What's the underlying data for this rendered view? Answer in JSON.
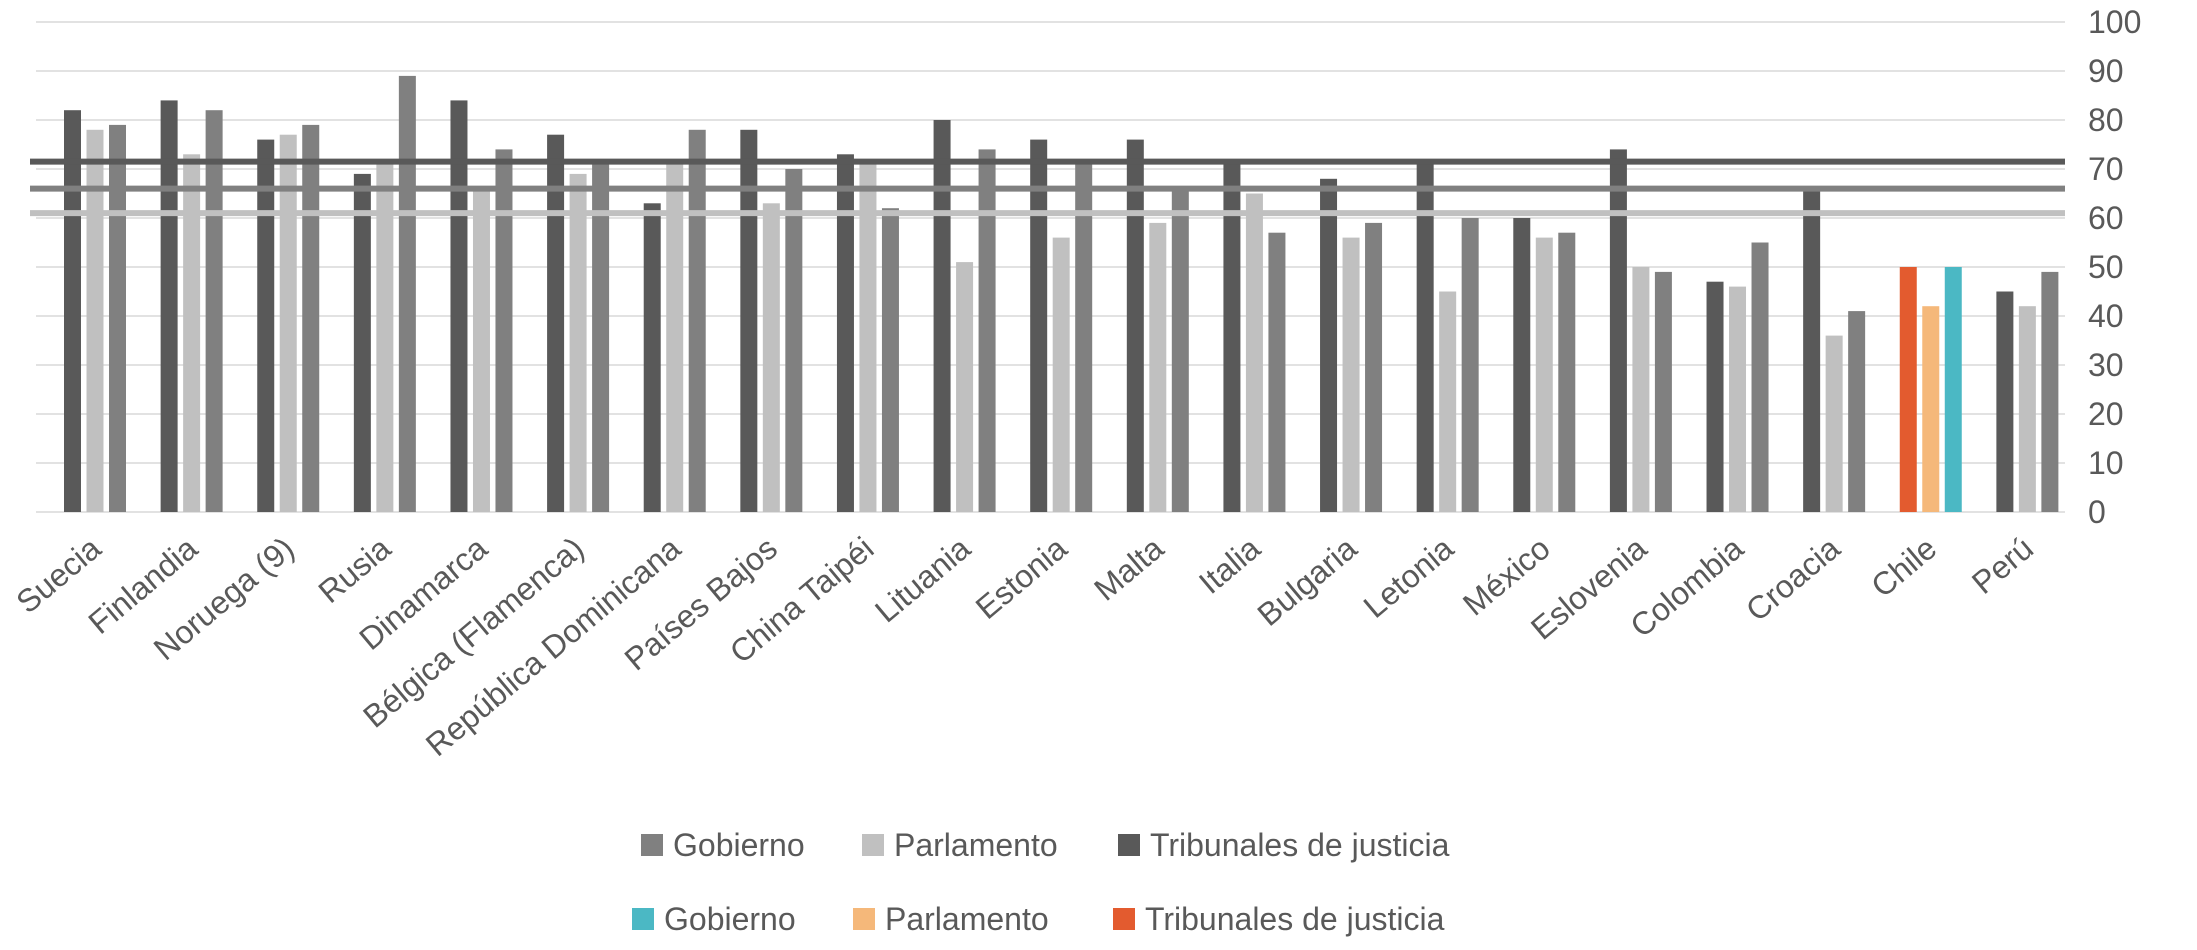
{
  "chart_data": {
    "type": "bar",
    "title": "",
    "xlabel": "",
    "ylabel": "",
    "ylim": [
      0,
      100
    ],
    "yticks": [
      0,
      10,
      20,
      30,
      40,
      50,
      60,
      70,
      80,
      90,
      100
    ],
    "y_axis_position": "right",
    "grid": true,
    "legend_position": "bottom",
    "categories": [
      "Suecia",
      "Finlandia",
      "Noruega (9)",
      "Rusia",
      "Dinamarca",
      "Bélgica (Flamenca)",
      "República Dominicana",
      "Países Bajos",
      "China Taipéi",
      "Lituania",
      "Estonia",
      "Malta",
      "Italia",
      "Bulgaria",
      "Letonia",
      "México",
      "Eslovenia",
      "Colombia",
      "Croacia",
      "Chile",
      "Perú"
    ],
    "series": [
      {
        "name": "Tribunales de justicia",
        "color": "#595959",
        "highlight_color": "#e35b2f",
        "values": [
          82,
          84,
          76,
          69,
          84,
          77,
          63,
          78,
          73,
          80,
          76,
          76,
          72,
          68,
          71,
          60,
          74,
          47,
          66,
          50,
          45
        ]
      },
      {
        "name": "Parlamento",
        "color": "#c0c0c0",
        "highlight_color": "#f5b87a",
        "values": [
          78,
          73,
          77,
          72,
          66,
          69,
          72,
          63,
          71,
          51,
          56,
          59,
          65,
          56,
          45,
          56,
          50,
          46,
          36,
          42,
          42
        ]
      },
      {
        "name": "Gobierno",
        "color": "#808080",
        "highlight_color": "#4bb8c4",
        "values": [
          79,
          82,
          79,
          89,
          74,
          72,
          78,
          70,
          62,
          74,
          72,
          66,
          57,
          59,
          60,
          57,
          49,
          55,
          41,
          50,
          49
        ]
      }
    ],
    "highlight_category": "Chile",
    "reference_lines": [
      {
        "series": "Tribunales de justicia",
        "value": 71.5,
        "color": "#595959"
      },
      {
        "series": "Gobierno",
        "value": 66,
        "color": "#808080"
      },
      {
        "series": "Parlamento",
        "value": 61,
        "color": "#c0c0c0"
      }
    ],
    "legend": [
      [
        {
          "label": "Gobierno",
          "color": "#808080"
        },
        {
          "label": "Parlamento",
          "color": "#c0c0c0"
        },
        {
          "label": "Tribunales de justicia",
          "color": "#595959"
        }
      ],
      [
        {
          "label": "Gobierno",
          "color": "#4bb8c4"
        },
        {
          "label": "Parlamento",
          "color": "#f5b87a"
        },
        {
          "label": "Tribunales de justicia",
          "color": "#e35b2f"
        }
      ]
    ]
  }
}
